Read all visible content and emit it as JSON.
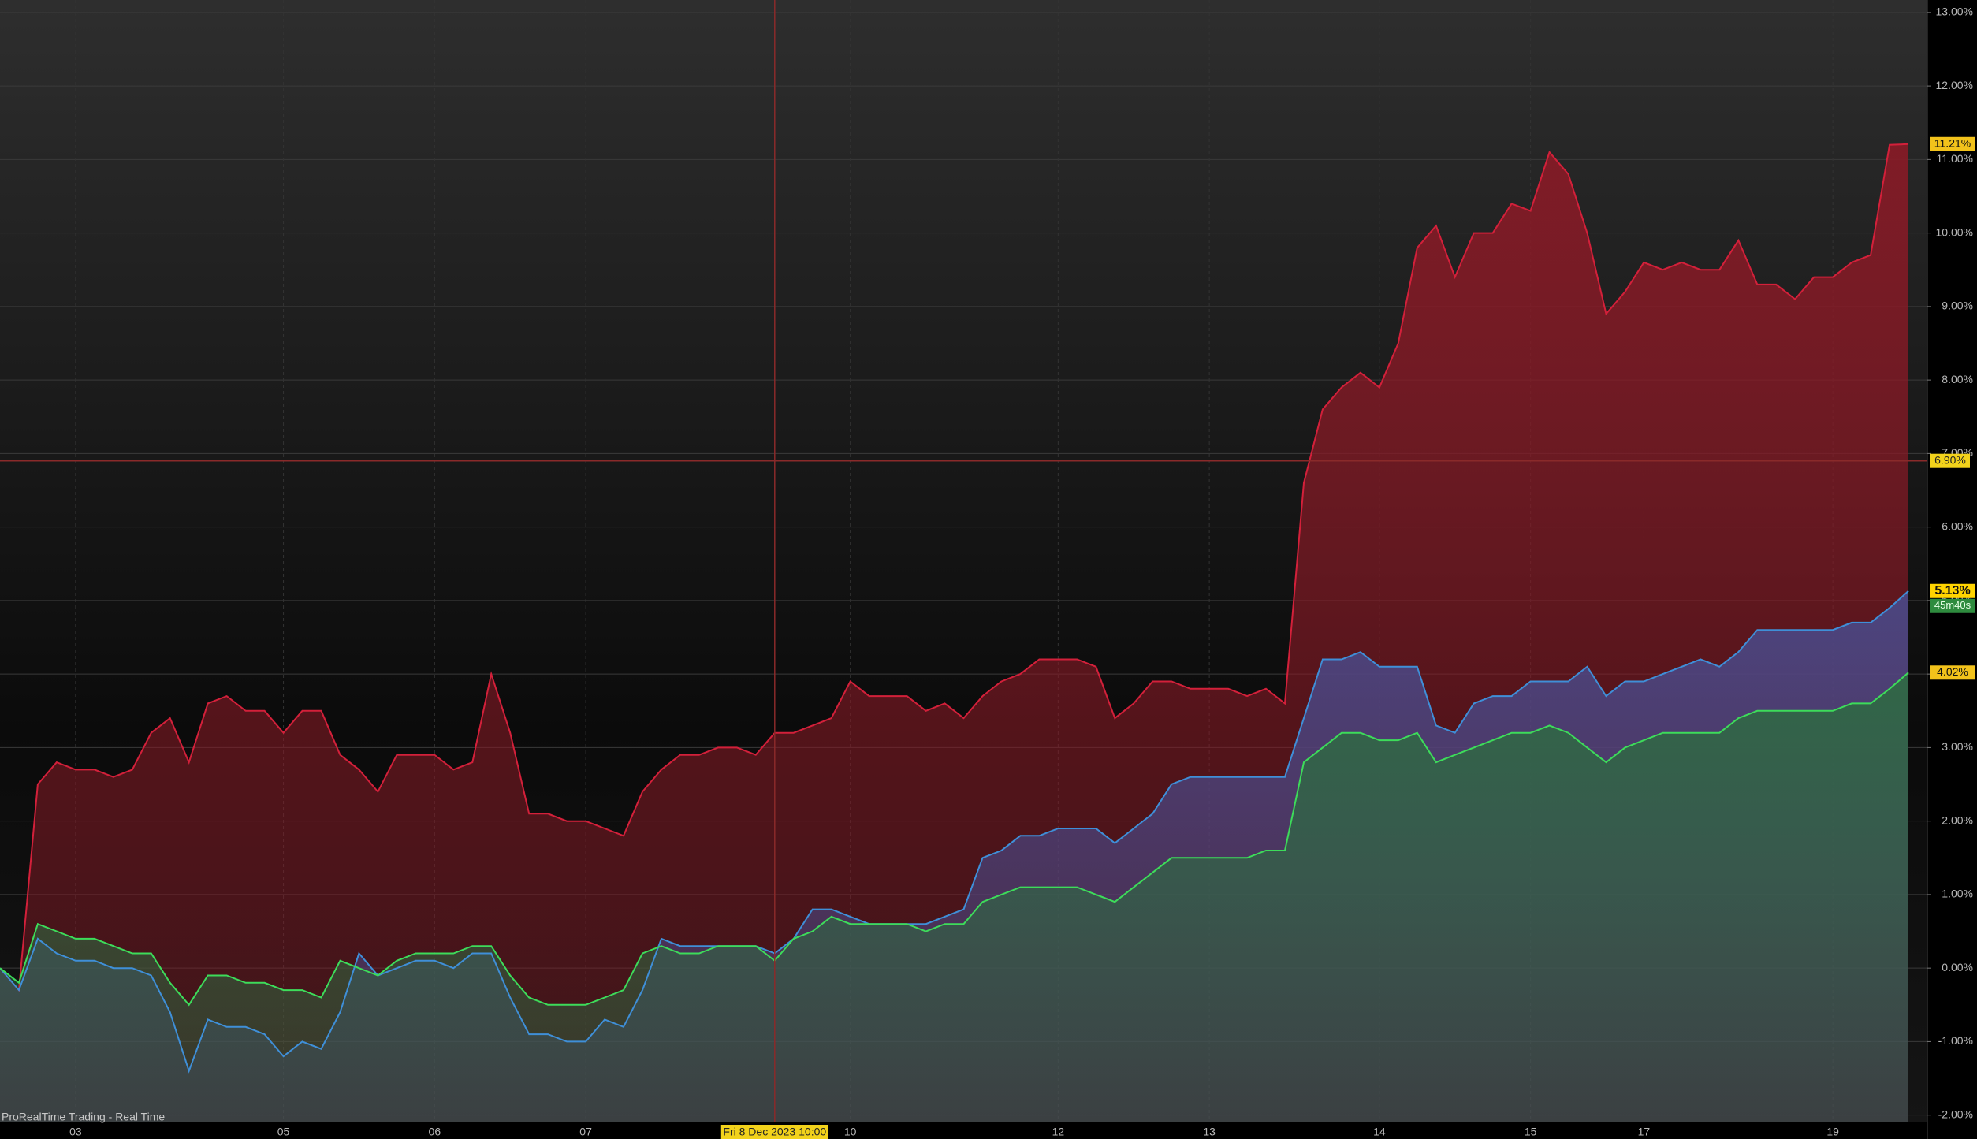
{
  "chart_data": {
    "type": "area",
    "x": [
      0,
      1,
      2,
      3,
      4,
      5,
      6,
      7,
      8,
      9,
      10,
      11,
      12,
      13,
      14,
      15,
      16,
      17,
      18,
      19,
      20,
      21,
      22,
      23,
      24,
      25,
      26,
      27,
      28,
      29,
      30,
      31,
      32,
      33,
      34,
      35,
      36,
      37,
      38,
      39,
      40,
      41,
      42,
      43,
      44,
      45,
      46,
      47,
      48,
      49,
      50,
      51,
      52,
      53,
      54,
      55,
      56,
      57,
      58,
      59,
      60,
      61,
      62,
      63,
      64,
      65,
      66,
      67,
      68,
      69,
      70,
      71,
      72,
      73,
      74,
      75,
      76,
      77,
      78,
      79,
      80,
      81,
      82,
      83,
      84,
      85,
      86,
      87,
      88,
      89,
      90,
      91,
      92,
      93,
      94,
      95,
      96,
      97,
      98,
      99,
      100,
      101
    ],
    "series": [
      {
        "color": "#d3203a",
        "fill": "#8a1a26",
        "last_label": "11.21%",
        "values": [
          0,
          -0.3,
          2.5,
          2.8,
          2.7,
          2.7,
          2.6,
          2.7,
          3.2,
          3.4,
          2.8,
          3.6,
          3.7,
          3.5,
          3.5,
          3.2,
          3.5,
          3.5,
          2.9,
          2.7,
          2.4,
          2.9,
          2.9,
          2.9,
          2.7,
          2.8,
          4.0,
          3.2,
          2.1,
          2.1,
          2.0,
          2.0,
          1.9,
          1.8,
          2.4,
          2.7,
          2.9,
          2.9,
          3.0,
          3.0,
          2.9,
          3.2,
          3.2,
          3.3,
          3.4,
          3.9,
          3.7,
          3.7,
          3.7,
          3.5,
          3.6,
          3.4,
          3.7,
          3.9,
          4.0,
          4.2,
          4.2,
          4.2,
          4.1,
          3.4,
          3.6,
          3.9,
          3.9,
          3.8,
          3.8,
          3.8,
          3.7,
          3.8,
          3.6,
          6.6,
          7.6,
          7.9,
          8.1,
          7.9,
          8.5,
          9.8,
          10.1,
          9.4,
          10.0,
          10.0,
          10.4,
          10.3,
          11.1,
          10.8,
          10.0,
          8.9,
          9.2,
          9.6,
          9.5,
          9.6,
          9.5,
          9.5,
          9.9,
          9.3,
          9.3,
          9.1,
          9.4,
          9.4,
          9.6,
          9.7,
          11.2,
          11.21
        ]
      },
      {
        "color": "#3f8fd8",
        "fill": "#4a4a8a",
        "last_label": "5.13%",
        "values": [
          0,
          -0.3,
          0.4,
          0.2,
          0.1,
          0.1,
          0.0,
          0.0,
          -0.1,
          -0.6,
          -1.4,
          -0.7,
          -0.8,
          -0.8,
          -0.9,
          -1.2,
          -1.0,
          -1.1,
          -0.6,
          0.2,
          -0.1,
          0.0,
          0.1,
          0.1,
          0.0,
          0.2,
          0.2,
          -0.4,
          -0.9,
          -0.9,
          -1.0,
          -1.0,
          -0.7,
          -0.8,
          -0.3,
          0.4,
          0.3,
          0.3,
          0.3,
          0.3,
          0.3,
          0.2,
          0.4,
          0.8,
          0.8,
          0.7,
          0.6,
          0.6,
          0.6,
          0.6,
          0.7,
          0.8,
          1.5,
          1.6,
          1.8,
          1.8,
          1.9,
          1.9,
          1.9,
          1.7,
          1.9,
          2.1,
          2.5,
          2.6,
          2.6,
          2.6,
          2.6,
          2.6,
          2.6,
          3.4,
          4.2,
          4.2,
          4.3,
          4.1,
          4.1,
          4.1,
          3.3,
          3.2,
          3.6,
          3.7,
          3.7,
          3.9,
          3.9,
          3.9,
          4.1,
          3.7,
          3.9,
          3.9,
          4.0,
          4.1,
          4.2,
          4.1,
          4.3,
          4.6,
          4.6,
          4.6,
          4.6,
          4.6,
          4.7,
          4.7,
          4.9,
          5.13
        ]
      },
      {
        "color": "#3ddc5a",
        "fill": "#2e6a42",
        "last_label": "4.02%",
        "values": [
          0,
          -0.2,
          0.6,
          0.5,
          0.4,
          0.4,
          0.3,
          0.2,
          0.2,
          -0.2,
          -0.5,
          -0.1,
          -0.1,
          -0.2,
          -0.2,
          -0.3,
          -0.3,
          -0.4,
          0.1,
          0.0,
          -0.1,
          0.1,
          0.2,
          0.2,
          0.2,
          0.3,
          0.3,
          -0.1,
          -0.4,
          -0.5,
          -0.5,
          -0.5,
          -0.4,
          -0.3,
          0.2,
          0.3,
          0.2,
          0.2,
          0.3,
          0.3,
          0.3,
          0.1,
          0.4,
          0.5,
          0.7,
          0.6,
          0.6,
          0.6,
          0.6,
          0.5,
          0.6,
          0.6,
          0.9,
          1.0,
          1.1,
          1.1,
          1.1,
          1.1,
          1.0,
          0.9,
          1.1,
          1.3,
          1.5,
          1.5,
          1.5,
          1.5,
          1.5,
          1.6,
          1.6,
          2.8,
          3.0,
          3.2,
          3.2,
          3.1,
          3.1,
          3.2,
          2.8,
          2.9,
          3.0,
          3.1,
          3.2,
          3.2,
          3.3,
          3.2,
          3.0,
          2.8,
          3.0,
          3.1,
          3.2,
          3.2,
          3.2,
          3.2,
          3.4,
          3.5,
          3.5,
          3.5,
          3.5,
          3.5,
          3.6,
          3.6,
          3.8,
          4.02
        ]
      }
    ],
    "xlim": [
      0,
      102
    ],
    "xticks": [
      {
        "value": 4,
        "label": "03"
      },
      {
        "value": 15,
        "label": "05"
      },
      {
        "value": 23,
        "label": "06"
      },
      {
        "value": 31,
        "label": "07"
      },
      {
        "value": 45,
        "label": "10"
      },
      {
        "value": 56,
        "label": "12"
      },
      {
        "value": 64,
        "label": "13"
      },
      {
        "value": 73,
        "label": "14"
      },
      {
        "value": 81,
        "label": "15"
      },
      {
        "value": 87,
        "label": "17"
      },
      {
        "value": 97,
        "label": "19"
      }
    ],
    "ylim": [
      -2.1,
      13.17
    ],
    "yticks": [
      {
        "value": -2,
        "label": "-2.00%"
      },
      {
        "value": -1,
        "label": "-1.00%"
      },
      {
        "value": 0,
        "label": "0.00%"
      },
      {
        "value": 1,
        "label": "1.00%"
      },
      {
        "value": 2,
        "label": "2.00%"
      },
      {
        "value": 3,
        "label": "3.00%"
      },
      {
        "value": 4,
        "label": "4.00%"
      },
      {
        "value": 5,
        "label": "5.00%"
      },
      {
        "value": 6,
        "label": "6.00%"
      },
      {
        "value": 7,
        "label": "7.00%"
      },
      {
        "value": 8,
        "label": "8.00%"
      },
      {
        "value": 9,
        "label": "9.00%"
      },
      {
        "value": 10,
        "label": "10.00%"
      },
      {
        "value": 11,
        "label": "11.00%"
      },
      {
        "value": 12,
        "label": "12.00%"
      },
      {
        "value": 13,
        "label": "13.00%"
      }
    ],
    "crosshair": {
      "x": 41,
      "x_label": "Fri 8 Dec 2023  10:00",
      "y": 6.9,
      "y_label": "6.90%"
    },
    "countdown": "45m40s",
    "footer": "ProRealTime Trading - Real Time",
    "grid": true
  }
}
